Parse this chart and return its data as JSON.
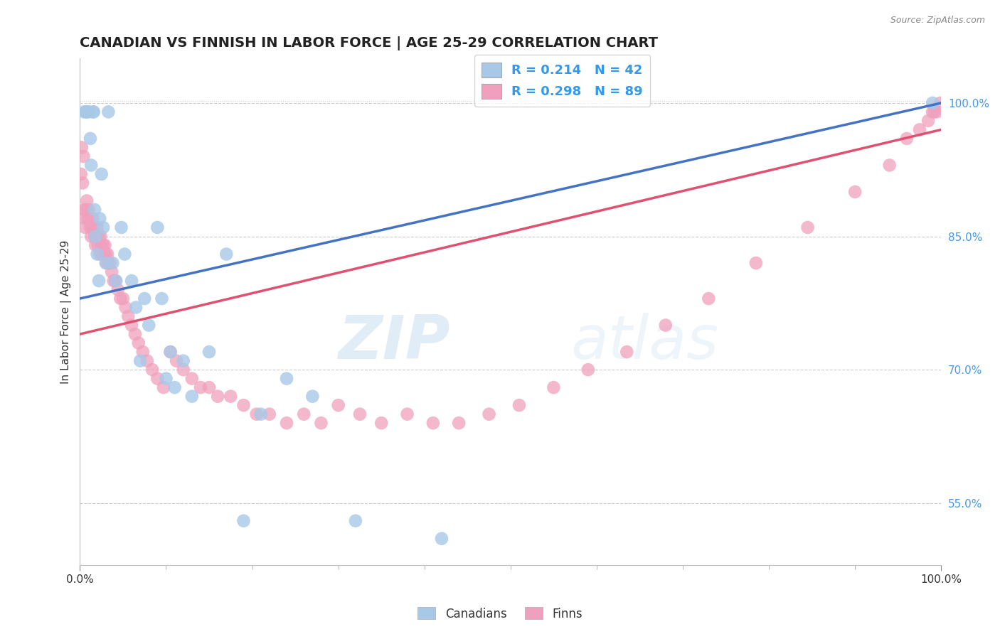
{
  "title": "CANADIAN VS FINNISH IN LABOR FORCE | AGE 25-29 CORRELATION CHART",
  "source_text": "Source: ZipAtlas.com",
  "ylabel": "In Labor Force | Age 25-29",
  "xlim": [
    0.0,
    1.0
  ],
  "ylim": [
    0.48,
    1.05
  ],
  "yticks": [
    0.55,
    0.7,
    0.85,
    1.0
  ],
  "ytick_labels": [
    "55.0%",
    "70.0%",
    "85.0%",
    "100.0%"
  ],
  "xticks": [
    0.0,
    1.0
  ],
  "xtick_labels": [
    "0.0%",
    "100.0%"
  ],
  "canadian_color": "#A8C8E8",
  "finn_color": "#F0A0BC",
  "canadian_line_color": "#4472C4",
  "finn_line_color": "#E05070",
  "legend_r_canadian": "R = 0.214",
  "legend_n_canadian": "N = 42",
  "legend_r_finn": "R = 0.298",
  "legend_n_finn": "N = 89",
  "watermark_zip": "ZIP",
  "watermark_atlas": "atlas",
  "background_color": "#FFFFFF",
  "title_fontsize": 14,
  "axis_label_fontsize": 11,
  "tick_fontsize": 11,
  "canadian_line_start_y": 0.78,
  "canadian_line_end_y": 1.0,
  "finn_line_start_y": 0.74,
  "finn_line_end_y": 0.97,
  "canadian_x": [
    0.005,
    0.007,
    0.008,
    0.01,
    0.012,
    0.013,
    0.015,
    0.016,
    0.017,
    0.018,
    0.02,
    0.022,
    0.023,
    0.025,
    0.027,
    0.03,
    0.033,
    0.038,
    0.042,
    0.048,
    0.052,
    0.06,
    0.065,
    0.07,
    0.075,
    0.08,
    0.09,
    0.095,
    0.1,
    0.105,
    0.11,
    0.12,
    0.13,
    0.15,
    0.17,
    0.19,
    0.21,
    0.24,
    0.27,
    0.32,
    0.42,
    0.99
  ],
  "canadian_y": [
    0.99,
    0.99,
    0.99,
    0.99,
    0.96,
    0.93,
    0.99,
    0.99,
    0.88,
    0.85,
    0.83,
    0.8,
    0.87,
    0.92,
    0.86,
    0.82,
    0.99,
    0.82,
    0.8,
    0.86,
    0.83,
    0.8,
    0.77,
    0.71,
    0.78,
    0.75,
    0.86,
    0.78,
    0.69,
    0.72,
    0.68,
    0.71,
    0.67,
    0.72,
    0.83,
    0.53,
    0.65,
    0.69,
    0.67,
    0.53,
    0.51,
    1.0
  ],
  "finn_x": [
    0.001,
    0.002,
    0.003,
    0.004,
    0.005,
    0.006,
    0.006,
    0.007,
    0.008,
    0.009,
    0.01,
    0.011,
    0.012,
    0.013,
    0.014,
    0.015,
    0.016,
    0.017,
    0.018,
    0.019,
    0.02,
    0.021,
    0.022,
    0.023,
    0.024,
    0.025,
    0.026,
    0.027,
    0.028,
    0.029,
    0.03,
    0.031,
    0.032,
    0.033,
    0.035,
    0.037,
    0.039,
    0.041,
    0.044,
    0.047,
    0.05,
    0.053,
    0.056,
    0.06,
    0.064,
    0.068,
    0.073,
    0.078,
    0.084,
    0.09,
    0.097,
    0.105,
    0.112,
    0.12,
    0.13,
    0.14,
    0.15,
    0.16,
    0.175,
    0.19,
    0.205,
    0.22,
    0.24,
    0.26,
    0.28,
    0.3,
    0.325,
    0.35,
    0.38,
    0.41,
    0.44,
    0.475,
    0.51,
    0.55,
    0.59,
    0.635,
    0.68,
    0.73,
    0.785,
    0.845,
    0.9,
    0.94,
    0.96,
    0.975,
    0.985,
    0.99,
    0.992,
    0.995,
    0.999
  ],
  "finn_y": [
    0.92,
    0.95,
    0.91,
    0.94,
    0.88,
    0.87,
    0.86,
    0.88,
    0.89,
    0.87,
    0.88,
    0.87,
    0.86,
    0.85,
    0.86,
    0.87,
    0.86,
    0.85,
    0.84,
    0.85,
    0.86,
    0.84,
    0.85,
    0.83,
    0.85,
    0.84,
    0.83,
    0.84,
    0.83,
    0.84,
    0.83,
    0.82,
    0.83,
    0.82,
    0.82,
    0.81,
    0.8,
    0.8,
    0.79,
    0.78,
    0.78,
    0.77,
    0.76,
    0.75,
    0.74,
    0.73,
    0.72,
    0.71,
    0.7,
    0.69,
    0.68,
    0.72,
    0.71,
    0.7,
    0.69,
    0.68,
    0.68,
    0.67,
    0.67,
    0.66,
    0.65,
    0.65,
    0.64,
    0.65,
    0.64,
    0.66,
    0.65,
    0.64,
    0.65,
    0.64,
    0.64,
    0.65,
    0.66,
    0.68,
    0.7,
    0.72,
    0.75,
    0.78,
    0.82,
    0.86,
    0.9,
    0.93,
    0.96,
    0.97,
    0.98,
    0.99,
    0.99,
    0.99,
    1.0
  ]
}
